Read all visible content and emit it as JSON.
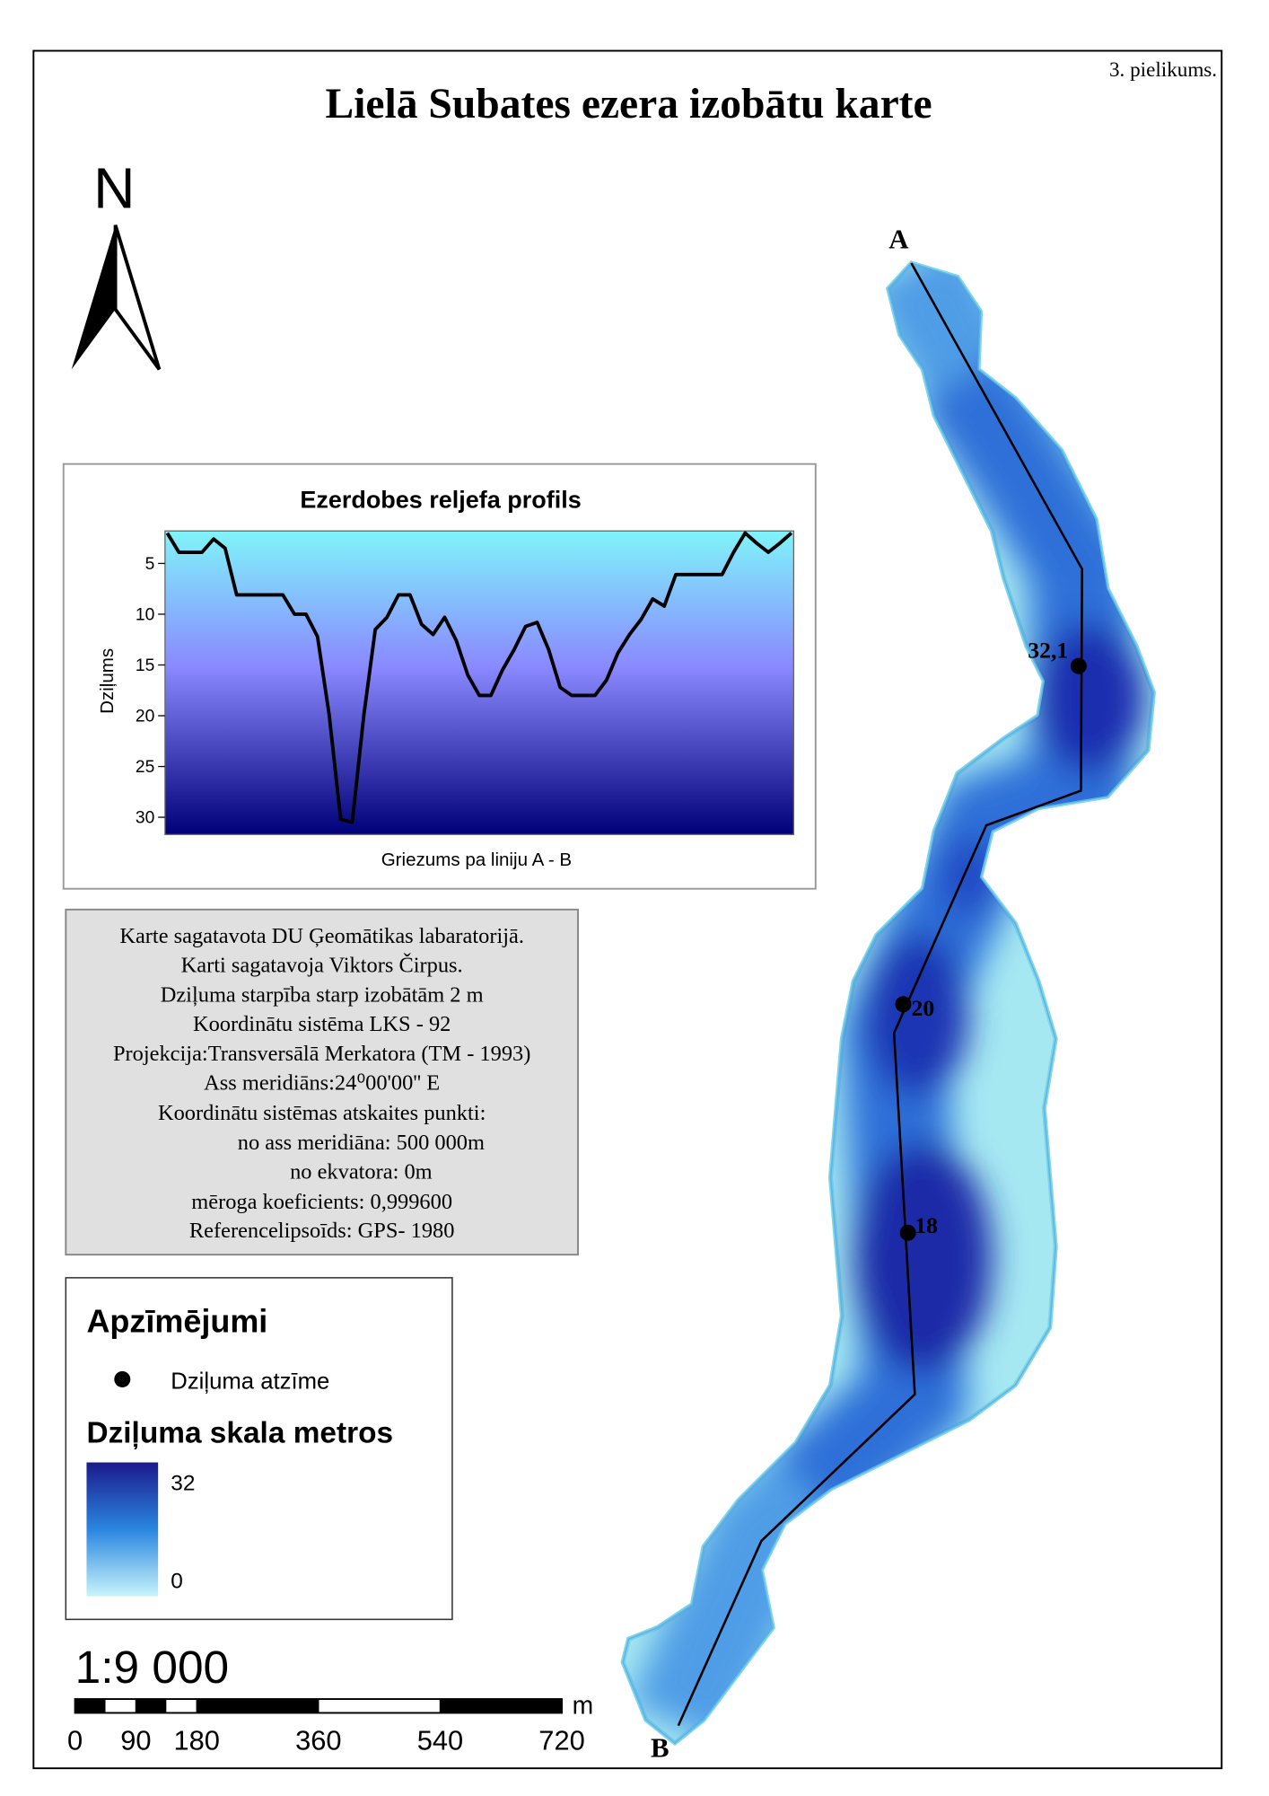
{
  "page_note": "3. pielikums.",
  "title": "Lielā Subates ezera izobātu karte",
  "north": "N",
  "transect": {
    "start": "A",
    "end": "B"
  },
  "depth_marks": [
    "32,1",
    "20",
    "18"
  ],
  "profile": {
    "type": "line",
    "title": "Ezerdobes reljefa profils",
    "y_label": "Dziļums",
    "x_label": "Griezums pa liniju A - B",
    "ylim": [
      1.8,
      31.7
    ],
    "yticks": [
      5,
      10,
      15,
      20,
      25,
      30
    ],
    "values": [
      2.0,
      3.9,
      3.9,
      3.9,
      2.6,
      3.5,
      8.1,
      8.1,
      8.1,
      8.1,
      8.1,
      10.0,
      10.0,
      12.2,
      19.9,
      30.2,
      30.5,
      20.0,
      11.5,
      10.3,
      8.1,
      8.1,
      11.0,
      12.0,
      10.3,
      12.6,
      16.0,
      18.0,
      18.0,
      15.5,
      13.5,
      11.2,
      10.8,
      13.5,
      17.2,
      18.0,
      18.0,
      18.0,
      16.5,
      13.8,
      12.0,
      10.5,
      8.5,
      9.2,
      6.1,
      6.1,
      6.1,
      6.1,
      6.1,
      3.9,
      2.0,
      3.0,
      3.9,
      3.0,
      2.0
    ]
  },
  "info": [
    "Karte sagatavota DU Ģeomātikas labaratorijā.",
    "Karti sagatavoja Viktors Čirpus.",
    "Dziļuma starpība starp izobātām 2 m",
    "Koordinātu sistēma LKS - 92",
    "Projekcija:Transversālā Merkatora (TM - 1993)",
    "Ass meridiāns:24⁰00'00'' E",
    "Koordinātu sistēmas atskaites punkti:",
    "no ass meridiāna: 500 000m",
    "no ekvatora: 0m",
    "mēroga koeficients: 0,999600",
    "Referencelipsoīds: GPS- 1980"
  ],
  "legend": {
    "title": "Apzīmējumi",
    "point_label": "Dziļuma atzīme",
    "scale_title": "Dziļuma skala metros",
    "ramp_max": 32,
    "ramp_min": 0
  },
  "scale": {
    "ratio": "1:9 000",
    "unit": "m",
    "ticks": [
      0,
      90,
      180,
      360,
      540,
      720
    ]
  }
}
